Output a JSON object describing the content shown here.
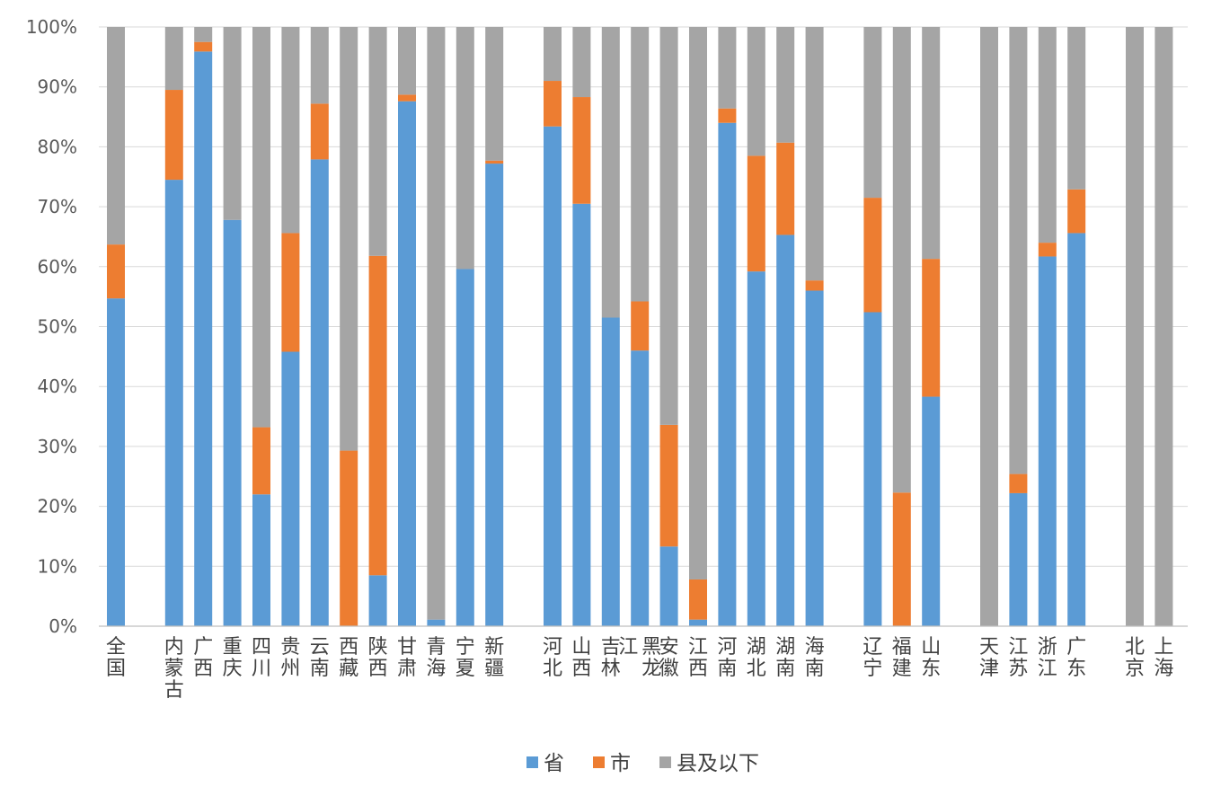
{
  "chart_data": {
    "type": "bar",
    "stacked": true,
    "percent": true,
    "categories": [
      "全国",
      "内蒙古",
      "广西",
      "重庆",
      "四川",
      "贵州",
      "云南",
      "西藏",
      "陕西",
      "甘肃",
      "青海",
      "宁夏",
      "新疆",
      "河北",
      "山西",
      "吉林",
      "黑龙江",
      "安徽",
      "江西",
      "河南",
      "湖北",
      "湖南",
      "海南",
      "辽宁",
      "福建",
      "山东",
      "天津",
      "江苏",
      "浙江",
      "广东",
      "北京",
      "上海"
    ],
    "x_labels": [
      [
        "全国"
      ],
      [
        "内蒙古"
      ],
      [
        "广西"
      ],
      [
        "重庆"
      ],
      [
        "四川"
      ],
      [
        "贵州"
      ],
      [
        "云南"
      ],
      [
        "西藏"
      ],
      [
        "陕西"
      ],
      [
        "甘肃"
      ],
      [
        "青海"
      ],
      [
        "宁夏"
      ],
      [
        "新疆"
      ],
      [
        "河北"
      ],
      [
        "山西"
      ],
      [
        "吉林"
      ],
      [
        "黑龙",
        "江"
      ],
      [
        "安徽"
      ],
      [
        "江西"
      ],
      [
        "河南"
      ],
      [
        "湖北"
      ],
      [
        "湖南"
      ],
      [
        "海南"
      ],
      [
        "辽宁"
      ],
      [
        "福建"
      ],
      [
        "山东"
      ],
      [
        "天津"
      ],
      [
        "江苏"
      ],
      [
        "浙江"
      ],
      [
        "广东"
      ],
      [
        "北京"
      ],
      [
        "上海"
      ]
    ],
    "groups": [
      1,
      12,
      10,
      3,
      4,
      2
    ],
    "series": [
      {
        "name": "省",
        "color": "#5B9BD5",
        "values": [
          54.7,
          74.5,
          95.9,
          67.8,
          22.0,
          45.8,
          77.9,
          0,
          8.5,
          87.6,
          1.1,
          59.6,
          77.2,
          83.4,
          70.5,
          51.5,
          46.0,
          13.3,
          1.1,
          84.0,
          59.2,
          65.3,
          56.0,
          52.4,
          0,
          38.3,
          0,
          22.2,
          61.7,
          65.6,
          0,
          0
        ]
      },
      {
        "name": "市",
        "color": "#ED7D31",
        "values": [
          9.0,
          15.0,
          1.6,
          0,
          11.2,
          19.8,
          9.3,
          29.3,
          53.3,
          1.1,
          0,
          0,
          0.5,
          7.6,
          17.8,
          0,
          8.2,
          20.3,
          6.7,
          2.4,
          19.3,
          15.4,
          1.7,
          19.1,
          22.3,
          23.0,
          0,
          3.2,
          2.3,
          7.3,
          0,
          0
        ]
      },
      {
        "name": "县及以下",
        "color": "#A5A5A5",
        "values": [
          36.3,
          10.5,
          2.5,
          32.2,
          66.8,
          34.4,
          12.8,
          70.7,
          38.2,
          11.3,
          98.9,
          40.4,
          22.3,
          9.0,
          11.7,
          48.5,
          45.8,
          66.4,
          92.2,
          13.6,
          21.5,
          19.3,
          42.3,
          28.5,
          77.7,
          38.7,
          100,
          74.6,
          36.0,
          27.1,
          100,
          100
        ]
      }
    ],
    "ylim": [
      0,
      100
    ],
    "yticks": [
      "0%",
      "10%",
      "20%",
      "30%",
      "40%",
      "50%",
      "60%",
      "70%",
      "80%",
      "90%",
      "100%"
    ],
    "grid": true,
    "legend": {
      "position": "bottom",
      "entries": [
        "省",
        "市",
        "县及以下"
      ]
    },
    "title": "",
    "xlabel": "",
    "ylabel": ""
  }
}
